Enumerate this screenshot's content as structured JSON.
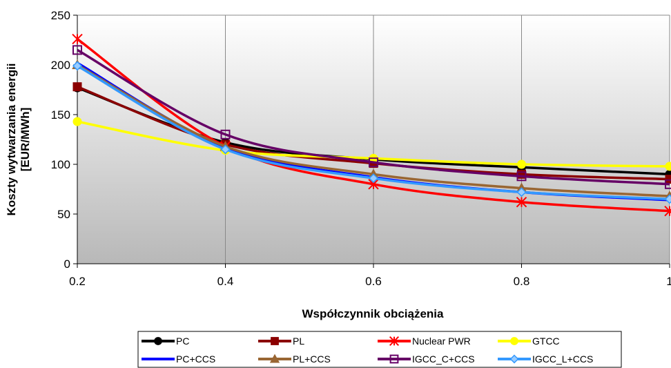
{
  "chart_data": {
    "type": "line",
    "xlabel": "Współczynnik obciążenia",
    "ylabel_lines": [
      "Koszty wytwarzania energii",
      "[EUR/MWh]"
    ],
    "x": [
      0.2,
      0.4,
      0.6,
      0.8,
      1
    ],
    "x_tick_labels": [
      "0.2",
      "0.4",
      "0.6",
      "0.8",
      "1"
    ],
    "y_ticks": [
      0,
      50,
      100,
      150,
      200,
      250
    ],
    "xlim": [
      0.2,
      1
    ],
    "ylim": [
      0,
      250
    ],
    "grid": "vertical",
    "legend_position": "bottom",
    "series": [
      {
        "name": "PC",
        "color": "#000000",
        "marker": "circle",
        "values": [
          177,
          122,
          105,
          97,
          90
        ]
      },
      {
        "name": "PL",
        "color": "#8b0000",
        "marker": "square",
        "values": [
          178,
          120,
          101,
          90,
          85
        ]
      },
      {
        "name": "Nuclear PWR",
        "color": "#ff0000",
        "marker": "star",
        "values": [
          226,
          118,
          80,
          62,
          53
        ]
      },
      {
        "name": "GTCC",
        "color": "#ffff00",
        "marker": "circle",
        "values": [
          143,
          114,
          106,
          100,
          98
        ]
      },
      {
        "name": "PC+CCS",
        "color": "#0000ff",
        "marker": "none",
        "values": [
          202,
          117,
          87,
          72,
          64
        ]
      },
      {
        "name": "PL+CCS",
        "color": "#996633",
        "marker": "triangle",
        "values": [
          200,
          118,
          90,
          76,
          68
        ]
      },
      {
        "name": "IGCC_C+CCS",
        "color": "#660066",
        "marker": "open-square",
        "values": [
          215,
          130,
          102,
          88,
          80
        ]
      },
      {
        "name": "IGCC_L+CCS",
        "color": "#3399ff",
        "marker": "diamond",
        "values": [
          199,
          115,
          86,
          72,
          65
        ]
      }
    ]
  }
}
